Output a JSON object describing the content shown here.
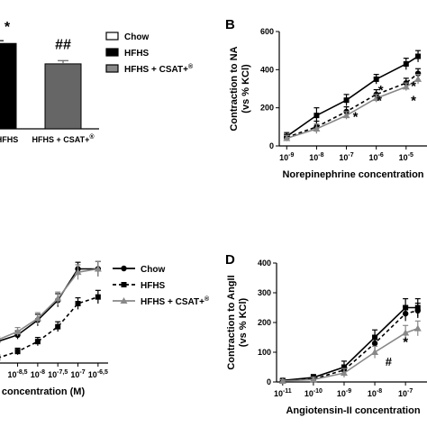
{
  "panels": {
    "A": {
      "letter": "",
      "xticks": [
        {
          "text": "HFHS",
          "cat": 0
        },
        {
          "text": "HFHS + CSAT+",
          "sup": "®",
          "cat": 1
        }
      ],
      "bars": [
        {
          "label": "HFHS",
          "value": 0.92,
          "err": 0.03,
          "color": "#000000"
        },
        {
          "label": "HFHS + CSAT+",
          "value": 0.7,
          "err": 0.035,
          "color": "#666666"
        }
      ],
      "annotations": [
        {
          "text": "*",
          "cat": 0,
          "value": 1.05
        },
        {
          "text": "##",
          "cat": 1,
          "value": 0.86
        }
      ]
    },
    "B": {
      "letter": "B",
      "ylabel_line1": "Contraction to NA",
      "ylabel_line2": "(vs % KCl)",
      "xlabel": "Norepinephrine concentration",
      "ylim": [
        0,
        600
      ],
      "yticks": [
        "0",
        "200",
        "400",
        "600"
      ],
      "xticks": [
        {
          "base": "10",
          "exp": "-9"
        },
        {
          "base": "10",
          "exp": "-8"
        },
        {
          "base": "10",
          "exp": "-7"
        },
        {
          "base": "10",
          "exp": "-6"
        },
        {
          "base": "10",
          "exp": "-5"
        }
      ],
      "series": [
        {
          "key": "hfhs",
          "x": [
            -9,
            -8,
            -7,
            -6,
            -5,
            -4.6
          ],
          "y": [
            50,
            160,
            240,
            350,
            430,
            470
          ],
          "err": [
            20,
            40,
            30,
            25,
            30,
            30
          ],
          "color": "#000000",
          "dash": "",
          "marker": "square"
        },
        {
          "key": "chow",
          "x": [
            -9,
            -8,
            -7,
            -6,
            -5,
            -4.6
          ],
          "y": [
            45,
            100,
            180,
            270,
            330,
            380
          ],
          "err": [
            15,
            30,
            25,
            25,
            25,
            25
          ],
          "color": "#000000",
          "dash": "4,3",
          "marker": "circle"
        },
        {
          "key": "csat",
          "x": [
            -9,
            -8,
            -7,
            -6,
            -5,
            -4.6
          ],
          "y": [
            40,
            90,
            160,
            250,
            310,
            350
          ],
          "err": [
            15,
            25,
            20,
            20,
            20,
            25
          ],
          "color": "#888888",
          "dash": "",
          "marker": "triangle"
        }
      ],
      "annotations": [
        {
          "text": "*",
          "x": -6.7,
          "y": 130
        },
        {
          "text": "*",
          "x": -5.85,
          "y": 270
        },
        {
          "text": "*",
          "x": -5.9,
          "y": 215
        },
        {
          "text": "*",
          "x": -4.75,
          "y": 290
        },
        {
          "text": "*",
          "x": -4.75,
          "y": 215
        }
      ]
    },
    "C": {
      "letter": "",
      "xlabel": "concentration (M)",
      "xticks": [
        {
          "base": "10",
          "exp": "-8,5",
          "x": -8.5
        },
        {
          "base": "10",
          "exp": "-8",
          "x": -8
        },
        {
          "base": "10",
          "exp": "-7,5",
          "x": -7.5
        },
        {
          "base": "10",
          "exp": "-7",
          "x": -7
        },
        {
          "base": "10",
          "exp": "-6,5",
          "x": -6.5
        }
      ],
      "series": [
        {
          "key": "chow",
          "x": [
            -9,
            -8.5,
            -8,
            -7.5,
            -7,
            -6.5
          ],
          "y": [
            30,
            70,
            160,
            280,
            470,
            470
          ],
          "err": [
            20,
            25,
            35,
            40,
            40,
            45
          ],
          "color": "#000000",
          "dash": "",
          "marker": "circle"
        },
        {
          "key": "hfhs",
          "x": [
            -9,
            -8.5,
            -8,
            -7.5,
            -7,
            -6.5
          ],
          "y": [
            -70,
            -30,
            30,
            120,
            260,
            300
          ],
          "err": [
            20,
            20,
            25,
            30,
            35,
            40
          ],
          "color": "#000000",
          "dash": "4,3",
          "marker": "square"
        },
        {
          "key": "csat",
          "x": [
            -9,
            -8.5,
            -8,
            -7.5,
            -7,
            -6.5
          ],
          "y": [
            40,
            90,
            170,
            290,
            450,
            470
          ],
          "err": [
            20,
            25,
            35,
            40,
            45,
            45
          ],
          "color": "#888888",
          "dash": "",
          "marker": "triangle"
        }
      ]
    },
    "D": {
      "letter": "D",
      "ylabel_line1": "Contraction to AngII",
      "ylabel_line2": "(vs % KCl)",
      "xlabel": "Angiotensin-II concentration",
      "ylim": [
        0,
        400
      ],
      "yticks": [
        "0",
        "100",
        "200",
        "300",
        "400"
      ],
      "xticks": [
        {
          "base": "10",
          "exp": "-11"
        },
        {
          "base": "10",
          "exp": "-10"
        },
        {
          "base": "10",
          "exp": "-9"
        },
        {
          "base": "10",
          "exp": "-8"
        },
        {
          "base": "10",
          "exp": "-7"
        }
      ],
      "series": [
        {
          "key": "hfhs",
          "x": [
            -11,
            -10,
            -9,
            -8,
            -7,
            -6.6
          ],
          "y": [
            5,
            15,
            50,
            150,
            250,
            250
          ],
          "err": [
            5,
            10,
            20,
            25,
            30,
            30
          ],
          "color": "#000000",
          "dash": "",
          "marker": "square"
        },
        {
          "key": "chow",
          "x": [
            -11,
            -10,
            -9,
            -8,
            -7,
            -6.6
          ],
          "y": [
            5,
            10,
            40,
            130,
            230,
            240
          ],
          "err": [
            5,
            10,
            15,
            25,
            25,
            25
          ],
          "color": "#000000",
          "dash": "4,3",
          "marker": "circle"
        },
        {
          "key": "csat",
          "x": [
            -11,
            -10,
            -9,
            -8,
            -7,
            -6.6
          ],
          "y": [
            3,
            8,
            30,
            100,
            165,
            180
          ],
          "err": [
            5,
            8,
            15,
            20,
            25,
            25
          ],
          "color": "#888888",
          "dash": "",
          "marker": "triangle"
        }
      ],
      "annotations": [
        {
          "text": "*",
          "x": -7,
          "y": 120
        },
        {
          "text": "#",
          "x": -7.55,
          "y": 55
        }
      ]
    }
  },
  "legend_top": [
    {
      "label": "Chow",
      "fill": "#ffffff",
      "stroke": "#000000"
    },
    {
      "label": "HFHS",
      "fill": "#000000",
      "stroke": "#000000"
    },
    {
      "label": "HFHS + CSAT+",
      "sup": "®",
      "fill": "#888888",
      "stroke": "#000000"
    }
  ],
  "legend_bottom": [
    {
      "label": "Chow",
      "color": "#000000",
      "dash": "",
      "marker": "circle"
    },
    {
      "label": "HFHS",
      "color": "#000000",
      "dash": "4,3",
      "marker": "square"
    },
    {
      "label": "HFHS + CSAT+",
      "sup": "®",
      "color": "#888888",
      "dash": "",
      "marker": "triangle"
    }
  ]
}
